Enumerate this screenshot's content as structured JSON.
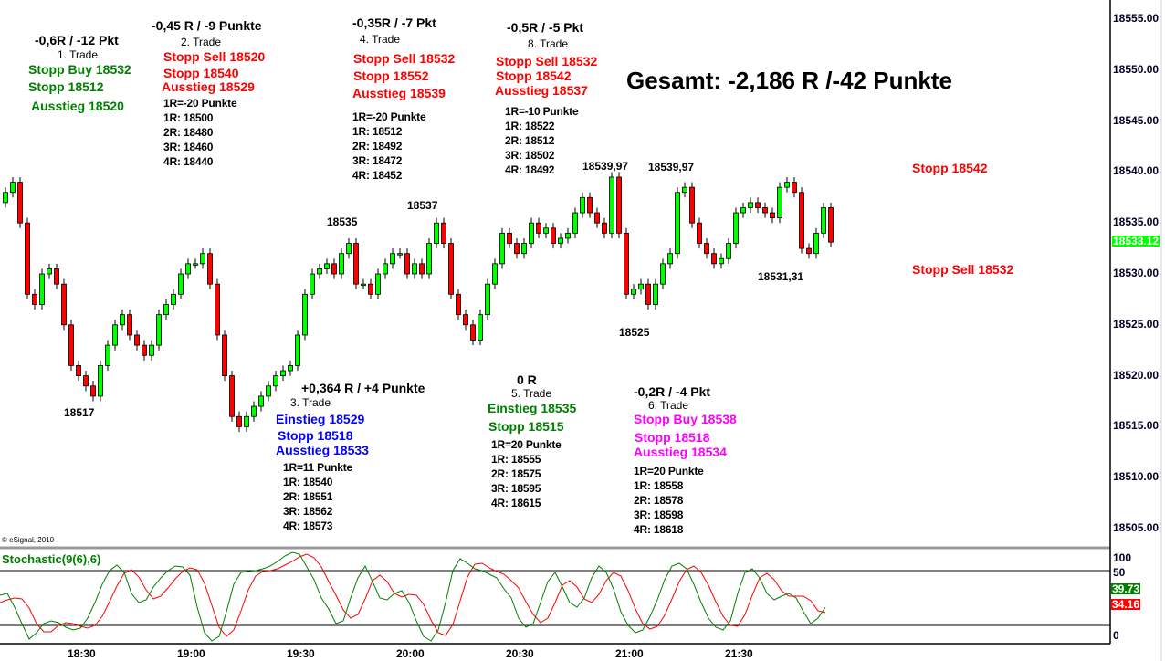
{
  "copyright": "© eSignal, 2010",
  "summary": "Gesamt: -2,186 R /-42 Punkte",
  "right_notes": [
    {
      "text": "Stopp 18542",
      "color": "#ff0000"
    },
    {
      "text": "Stopp Sell 18532",
      "color": "#ff0000"
    }
  ],
  "price_labels": [
    "18517",
    "18535",
    "18537",
    "18539,97",
    "18539,97",
    "18525",
    "18531,31"
  ],
  "trades": [
    {
      "result": "-0,6R / -12 Pkt",
      "name": "1. Trade",
      "color": "#008000",
      "lines": [
        "Stopp Buy 18532",
        "Stopp 18512",
        "Ausstieg 18520"
      ],
      "r_lines": []
    },
    {
      "result": "-0,45 R / -9 Punkte",
      "name": "2. Trade",
      "color": "#ff0000",
      "lines": [
        "Stopp Sell 18520",
        "Stopp 18540",
        "Ausstieg 18529"
      ],
      "r_lines": [
        "1R=-20 Punkte",
        "1R: 18500",
        "2R: 18480",
        "3R: 18460",
        "4R: 18440"
      ]
    },
    {
      "result": "+0,364 R / +4 Punkte",
      "name": "3. Trade",
      "color": "#0000ff",
      "lines": [
        "Einstieg 18529",
        "Stopp 18518",
        "Ausstieg 18533"
      ],
      "r_lines": [
        "1R=11 Punkte",
        "1R: 18540",
        "2R: 18551",
        "3R: 18562",
        "4R: 18573"
      ]
    },
    {
      "result": "-0,35R / -7 Pkt",
      "name": "4. Trade",
      "color": "#ff0000",
      "lines": [
        "Stopp Sell 18532",
        "Stopp 18552",
        "Ausstieg 18539"
      ],
      "r_lines": [
        "1R=-20 Punkte",
        "1R: 18512",
        "2R: 18492",
        "3R: 18472",
        "4R: 18452"
      ]
    },
    {
      "result": "0 R",
      "name": "5. Trade",
      "color": "#008000",
      "lines": [
        "Einstieg 18535",
        "Stopp 18515"
      ],
      "r_lines": [
        "1R=20 Punkte",
        "1R: 18555",
        "2R: 18575",
        "3R: 18595",
        "4R: 18615"
      ]
    },
    {
      "result": "-0,2R / -4 Pkt",
      "name": "6. Trade",
      "color": "#ff00ff",
      "lines": [
        "Stopp Buy 18538",
        "Stopp 18518",
        "Ausstieg 18534"
      ],
      "r_lines": [
        "1R=20 Punkte",
        "1R: 18558",
        "2R: 18578",
        "3R: 18598",
        "4R: 18618"
      ]
    },
    {
      "result": "-0,5R / -5 Pkt",
      "name": "8. Trade",
      "color": "#ff0000",
      "lines": [
        "Stopp Sell 18532",
        "Stopp 18542",
        "Ausstieg 18537"
      ],
      "r_lines": [
        "1R=-10 Punkte",
        "1R: 18522",
        "2R: 18512",
        "3R: 18502",
        "4R: 18492"
      ]
    }
  ],
  "chart_data": [
    {
      "type": "candlestick",
      "title": "",
      "up_color": "#00ff00",
      "down_color": "#ff0000",
      "ylim": [
        18502,
        18558
      ],
      "y_ticks": [
        "18555.00",
        "18550.00",
        "18545.00",
        "18540.00",
        "18535.00",
        "18530.00",
        "18525.00",
        "18520.00",
        "18515.00",
        "18510.00",
        "18505.00"
      ],
      "x_ticks": [
        "18:30",
        "19:00",
        "19:30",
        "20:00",
        "20:30",
        "21:00",
        "21:30"
      ],
      "last_price": "18533.12",
      "last_price_color": "#00ff00",
      "closes": [
        18538,
        18539,
        18535,
        18528,
        18527,
        18530,
        18530.5,
        18529,
        18525,
        18521,
        18520,
        18519,
        18518,
        18521,
        18523,
        18525,
        18526,
        18524,
        18523,
        18522,
        18523,
        18526,
        18527,
        18528,
        18530,
        18531,
        18531,
        18532,
        18529,
        18524,
        18520,
        18516,
        18515,
        18516,
        18517,
        18518,
        18519,
        18520,
        18520.5,
        18521,
        18524,
        18528,
        18530,
        18530.5,
        18531,
        18530,
        18532,
        18533,
        18529,
        18529,
        18528,
        18530,
        18531,
        18532,
        18532,
        18530,
        18531,
        18530,
        18533,
        18535,
        18533,
        18528,
        18526,
        18525,
        18523.5,
        18526,
        18529,
        18531,
        18534,
        18533,
        18532,
        18533,
        18535,
        18534,
        18534.5,
        18533,
        18533.5,
        18534,
        18536,
        18537.5,
        18536,
        18535,
        18534,
        18539.5,
        18534,
        18528,
        18528.5,
        18529,
        18527,
        18529,
        18531,
        18532,
        18538,
        18538.5,
        18535,
        18533,
        18532,
        18531,
        18531.5,
        18533,
        18536,
        18536.5,
        18537,
        18536.5,
        18536,
        18535.5,
        18538.5,
        18539,
        18538,
        18532.5,
        18532,
        18534,
        18536.5,
        18533.12
      ]
    },
    {
      "type": "line",
      "title": "Stochastic(9(6),6)",
      "ylim": [
        0,
        100
      ],
      "y_ticks": [
        "100",
        "50",
        "0"
      ],
      "reference_lines": [
        80,
        20
      ],
      "series": [
        {
          "color": "#008000",
          "last_label": "39.73",
          "values": [
            53,
            55,
            40,
            22,
            5,
            12,
            22,
            25,
            23,
            18,
            15,
            17,
            28,
            45,
            65,
            80,
            86,
            78,
            55,
            45,
            48,
            62,
            72,
            80,
            85,
            84,
            75,
            40,
            12,
            3,
            8,
            35,
            65,
            78,
            79,
            80,
            82,
            85,
            90,
            96,
            100,
            98,
            84,
            70,
            50,
            38,
            22,
            25,
            50,
            72,
            85,
            68,
            50,
            48,
            55,
            58,
            45,
            25,
            8,
            3,
            15,
            45,
            80,
            93,
            88,
            82,
            80,
            76,
            72,
            60,
            50,
            28,
            18,
            22,
            45,
            68,
            78,
            62,
            45,
            40,
            50,
            72,
            85,
            78,
            60,
            35,
            20,
            12,
            15,
            30,
            48,
            70,
            85,
            88,
            82,
            65,
            45,
            28,
            18,
            15,
            25,
            55,
            78,
            82,
            72,
            55,
            48,
            52,
            55,
            50,
            35,
            22,
            28,
            39.73
          ]
        },
        {
          "color": "#ff0000",
          "last_label": "34.16",
          "values": [
            45,
            48,
            50,
            49,
            39,
            22,
            13,
            13,
            20,
            23,
            22,
            19,
            17,
            20,
            30,
            46,
            63,
            77,
            81,
            73,
            59,
            49,
            52,
            61,
            71,
            79,
            83,
            81,
            66,
            42,
            18,
            8,
            15,
            36,
            59,
            74,
            79,
            80,
            82,
            86,
            90,
            95,
            98,
            94,
            84,
            68,
            53,
            37,
            28,
            32,
            49,
            69,
            75,
            68,
            55,
            51,
            54,
            53,
            43,
            26,
            12,
            9,
            21,
            47,
            73,
            87,
            88,
            83,
            79,
            76,
            69,
            61,
            46,
            32,
            23,
            28,
            45,
            64,
            69,
            62,
            49,
            45,
            54,
            69,
            78,
            74,
            58,
            38,
            22,
            16,
            19,
            31,
            49,
            68,
            81,
            85,
            78,
            64,
            46,
            30,
            20,
            19,
            32,
            53,
            72,
            77,
            70,
            58,
            52,
            52,
            52,
            47,
            36,
            34.16
          ]
        }
      ]
    }
  ]
}
